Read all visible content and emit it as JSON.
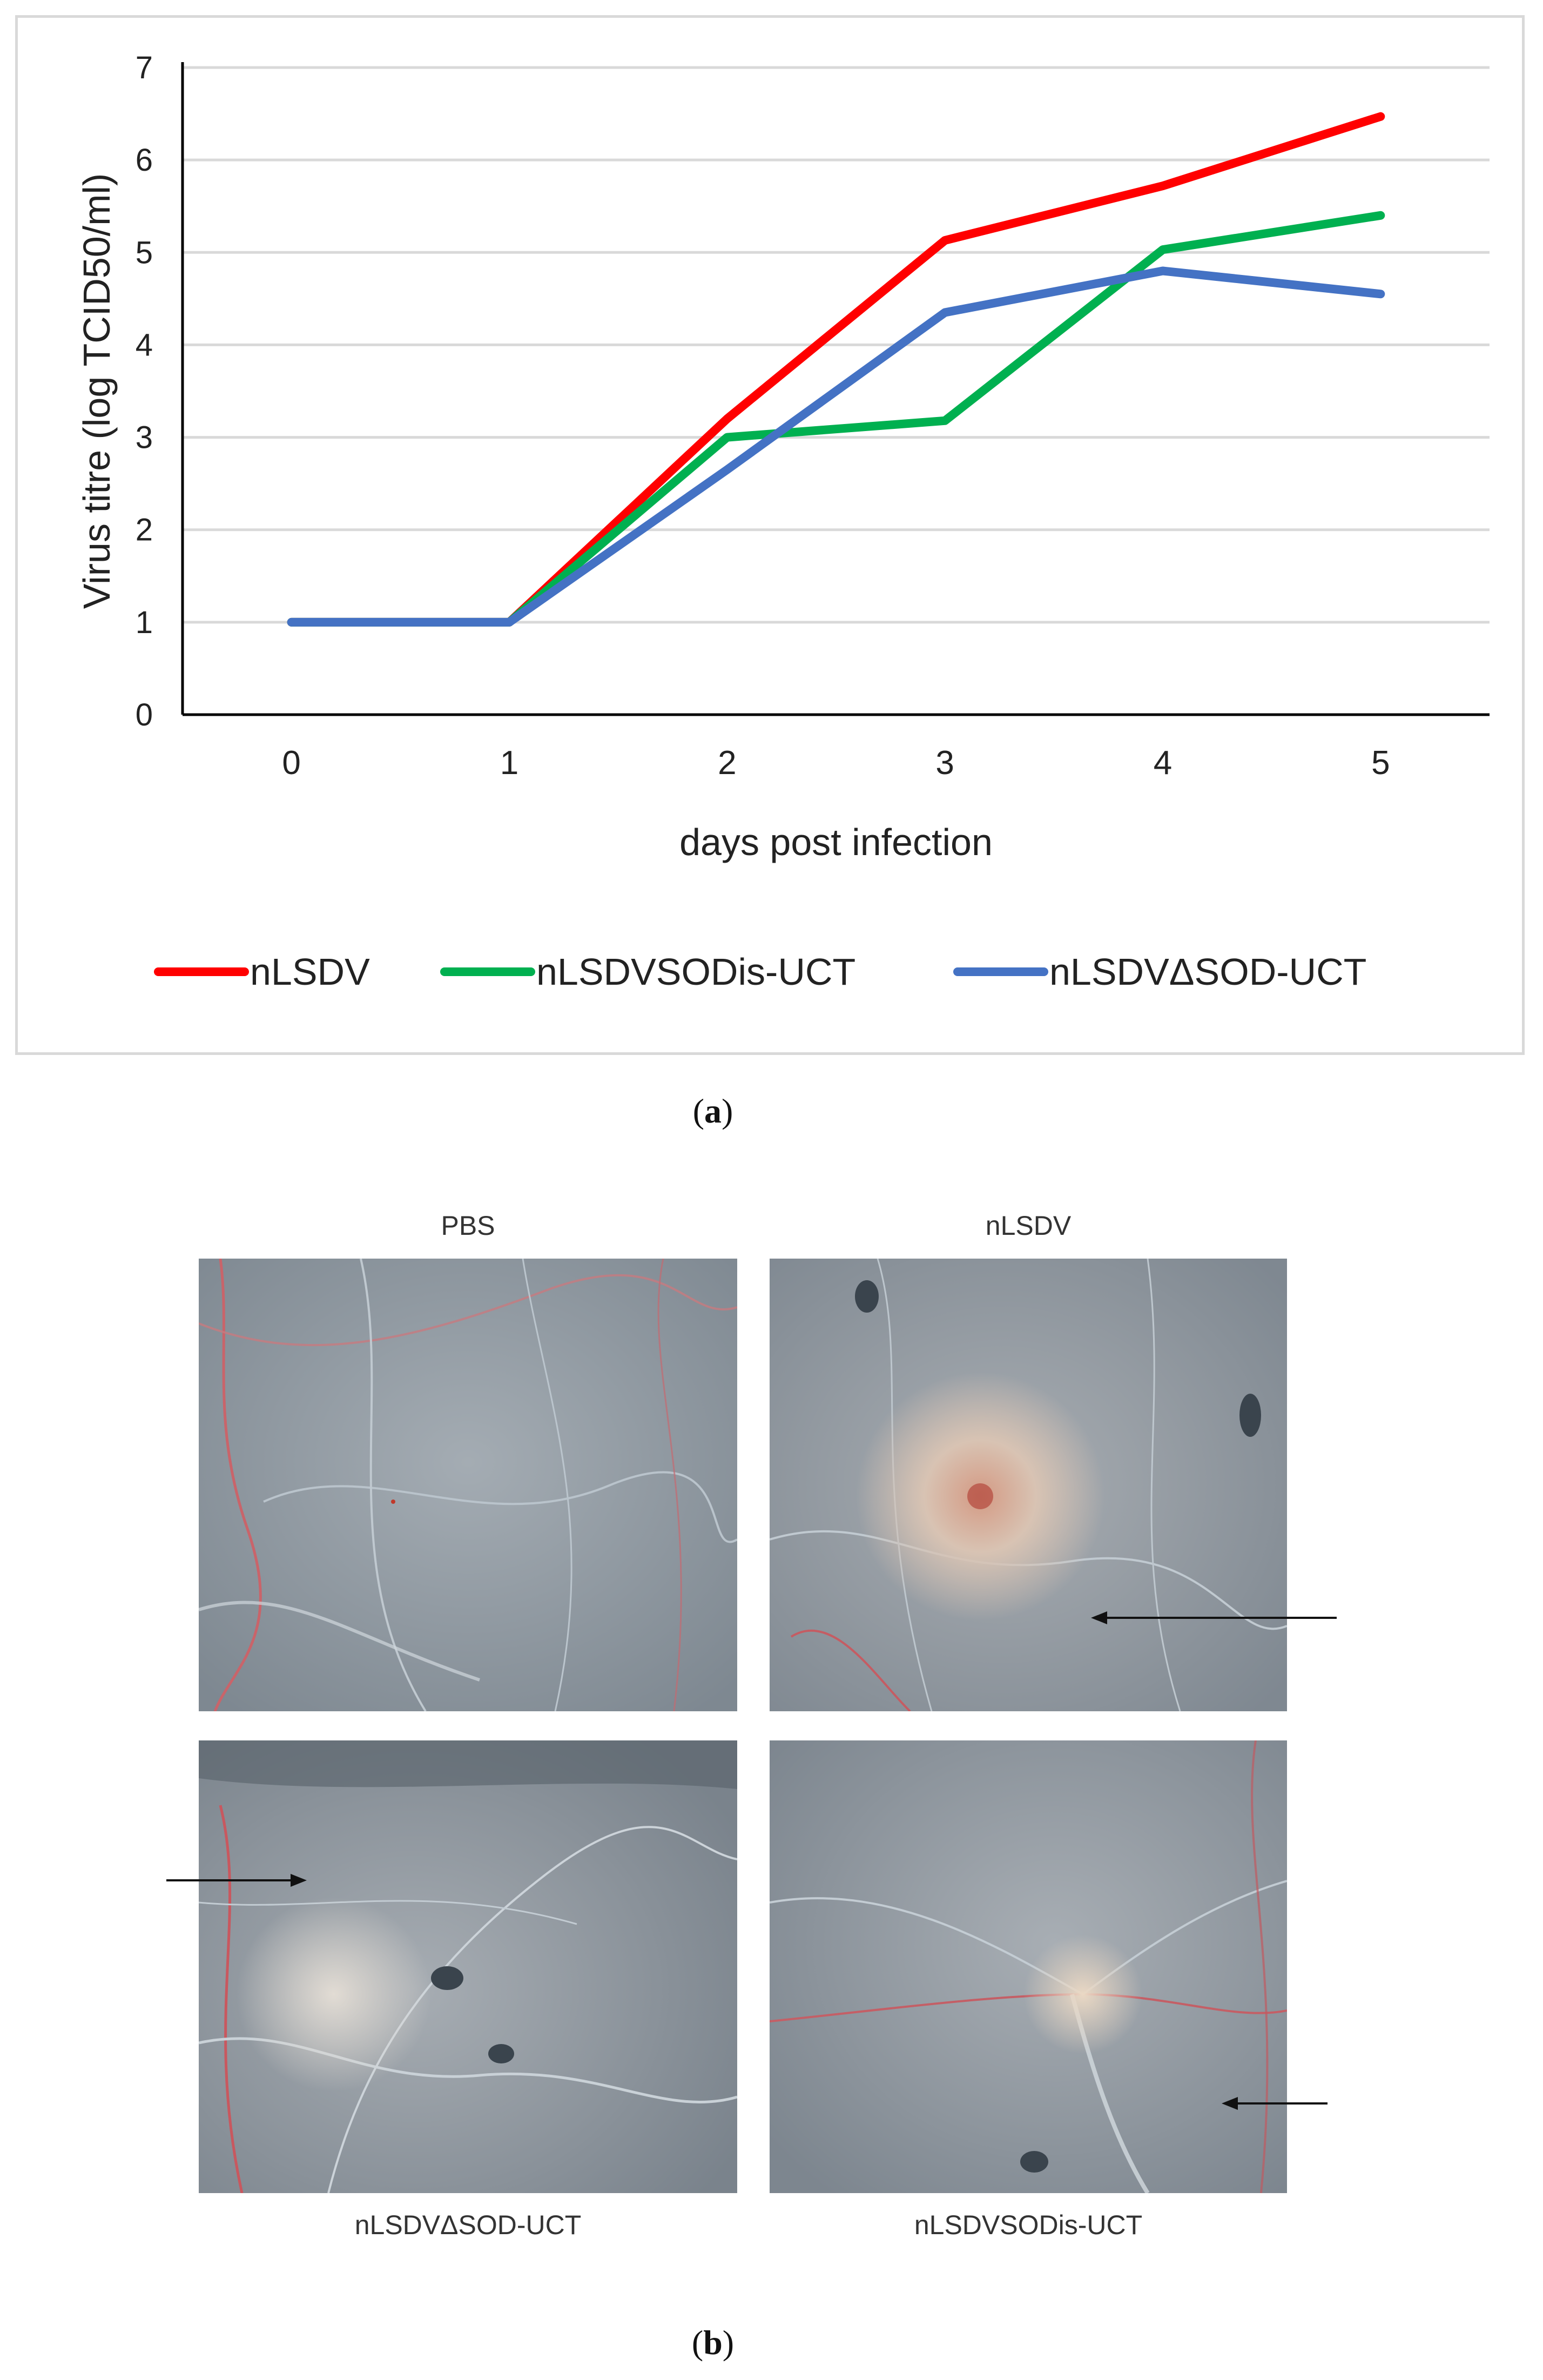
{
  "chart_data": {
    "type": "line",
    "x": [
      0,
      1,
      2,
      3,
      4,
      5
    ],
    "categories": [
      "0",
      "1",
      "2",
      "3",
      "4",
      "5"
    ],
    "xlabel": "days post infection",
    "ylabel": "Virus titre (log TCID50/ml)",
    "ylim": [
      0,
      7
    ],
    "yticks": [
      "0",
      "1",
      "2",
      "3",
      "4",
      "5",
      "6",
      "7"
    ],
    "grid": true,
    "legend_position": "bottom",
    "series": [
      {
        "name": "nLSDV",
        "color": "#ff0000",
        "values": [
          1,
          1,
          3.2,
          5.13,
          5.72,
          6.47
        ]
      },
      {
        "name": "nLSDVSODis-UCT",
        "color": "#00b050",
        "values": [
          1,
          1,
          3.0,
          3.18,
          5.03,
          5.4
        ]
      },
      {
        "name": "nLSDVΔSOD-UCT",
        "color": "#4472c4",
        "values": [
          1,
          1,
          2.65,
          4.35,
          4.8,
          4.55
        ]
      }
    ]
  },
  "captions": {
    "a": "a",
    "b": "b"
  },
  "panels": {
    "top_left": "PBS",
    "top_right": "nLSDV",
    "bottom_left": "nLSDVΔSOD-UCT",
    "bottom_right": "nLSDVSODis-UCT"
  },
  "colors": {
    "grid": "#d9d9d9",
    "axis": "#000000"
  }
}
